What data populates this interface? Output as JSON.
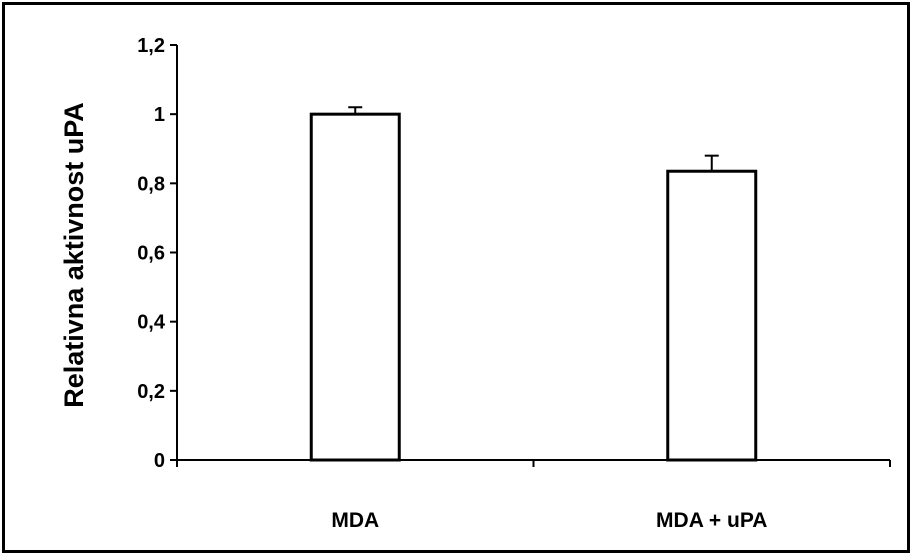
{
  "chart_data": {
    "type": "bar",
    "categories": [
      "MDA",
      "MDA + uPA"
    ],
    "values": [
      1.0,
      0.835
    ],
    "errors": [
      0.02,
      0.045
    ],
    "ylabel": "Relativna aktivnost uPA",
    "xlabel": "",
    "ylim": [
      0,
      1.2
    ],
    "yticks": [
      "0",
      "0,2",
      "0,4",
      "0,6",
      "0,8",
      "1",
      "1,2"
    ],
    "grid": false,
    "legend": "none",
    "bar_fill": "#ffffff",
    "bar_stroke": "#000000"
  }
}
